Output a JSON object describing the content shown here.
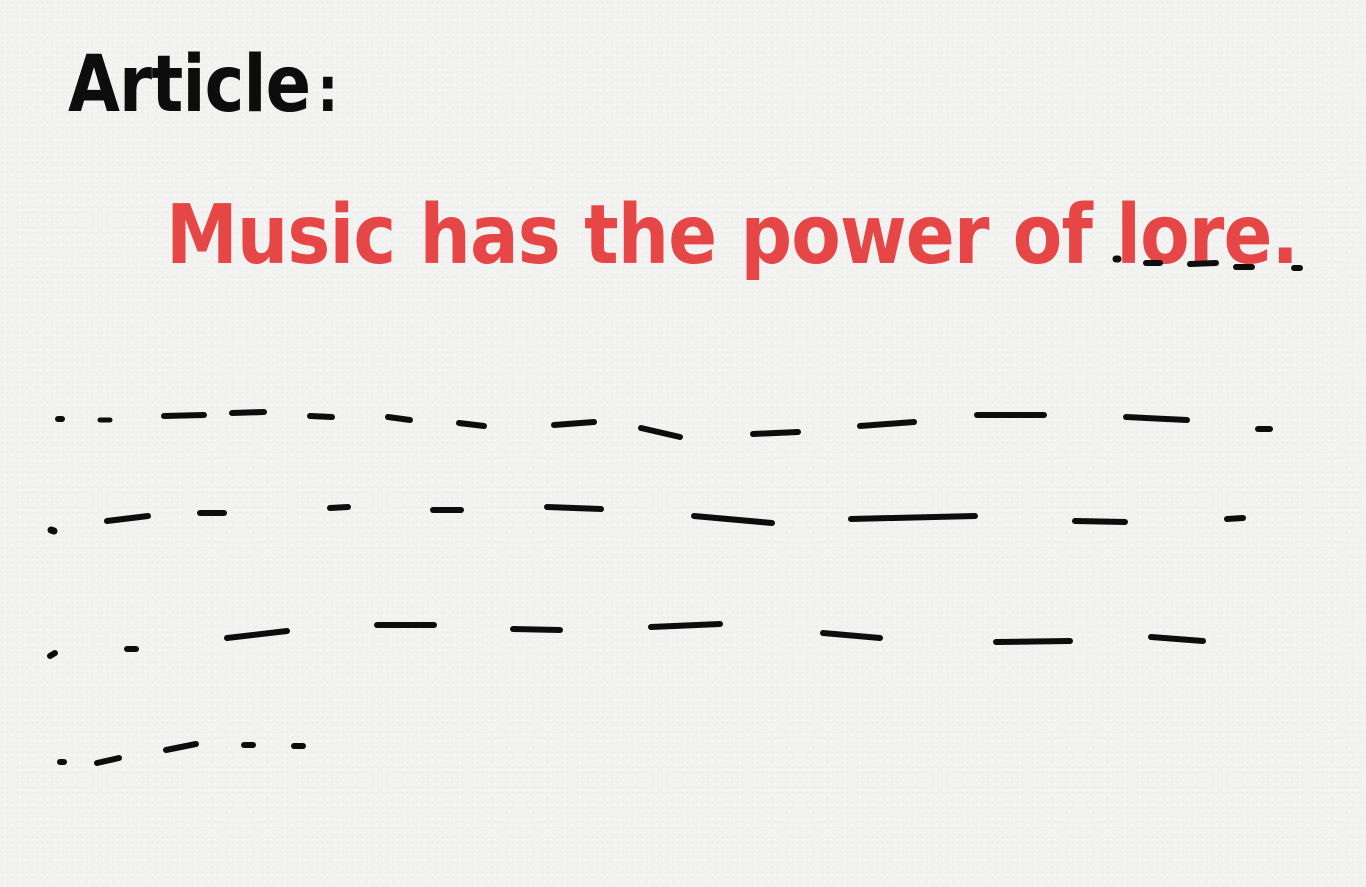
{
  "document": {
    "heading": "Article",
    "heading_colon": ":",
    "sentence": "Music has the power of lore.",
    "ink_color": "#0d0d0d",
    "accent_color": "#e64646"
  }
}
